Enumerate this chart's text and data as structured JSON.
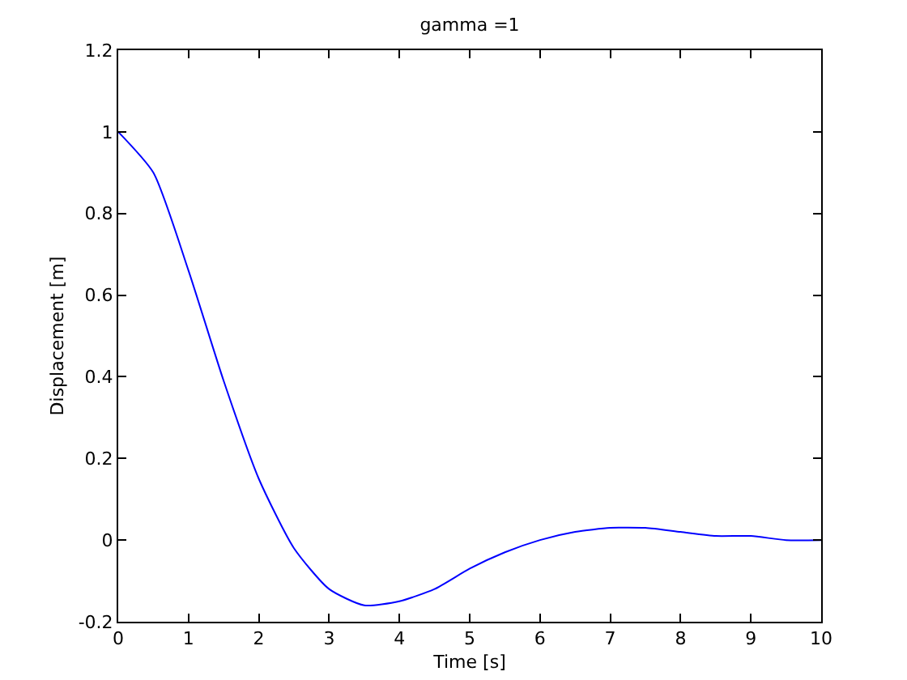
{
  "chart_data": {
    "type": "line",
    "title": "gamma =1",
    "xlabel": "Time [s]",
    "ylabel": "Displacement [m]",
    "x": [
      0,
      0.5,
      1,
      1.5,
      2,
      2.5,
      3,
      3.5,
      4,
      4.5,
      5,
      5.5,
      6,
      6.5,
      7,
      7.5,
      8,
      8.5,
      9,
      9.5,
      10
    ],
    "series": [
      {
        "color": "#0000ff",
        "values": [
          1,
          0.9,
          0.66,
          0.39,
          0.15,
          -0.02,
          -0.12,
          -0.16,
          -0.15,
          -0.12,
          -0.07,
          -0.03,
          0,
          0.02,
          0.03,
          0.03,
          0.02,
          0.01,
          0.01,
          0,
          0
        ]
      }
    ],
    "xlim": [
      0,
      10
    ],
    "xticks": [
      0,
      1,
      2,
      3,
      4,
      5,
      6,
      7,
      8,
      9,
      10
    ],
    "ylim": [
      -0.2,
      1.2
    ],
    "yticks": [
      -0.2,
      0,
      0.2,
      0.4,
      0.6,
      0.8,
      1,
      1.2
    ],
    "marker": "none",
    "line_style": "solid"
  }
}
